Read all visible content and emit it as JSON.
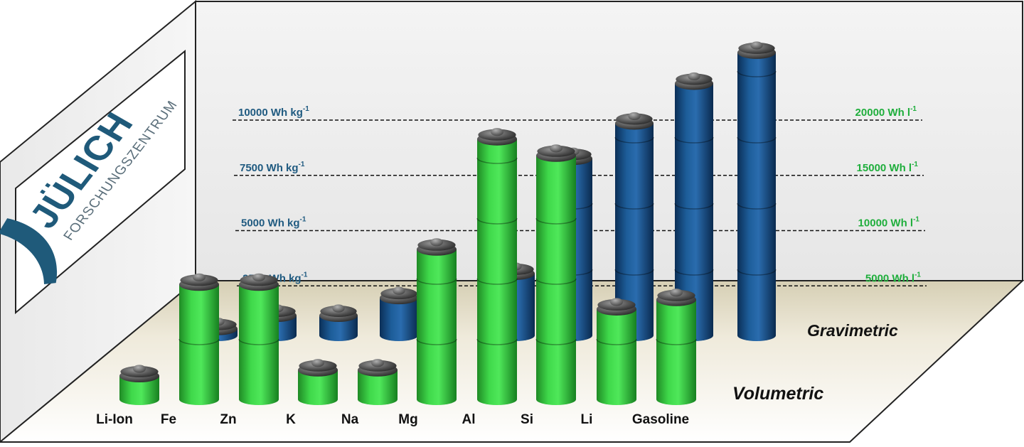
{
  "logo": {
    "brand": "JÜLICH",
    "subtitle": "FORSCHUNGSZENTRUM"
  },
  "colors": {
    "gravimetric": "#1f5a93",
    "volumetric": "#3fd24a",
    "left_axis_text": "#1f5a80",
    "right_axis_text": "#1fae3c",
    "floor": "#ece6d4",
    "wall": "#f0f0f0"
  },
  "chart_data": {
    "type": "bar",
    "title": "",
    "categories": [
      "Li-Ion",
      "Fe",
      "Zn",
      "K",
      "Na",
      "Mg",
      "Al",
      "Si",
      "Li",
      "Gasoline"
    ],
    "series": [
      {
        "name": "Gravimetric",
        "unit": "Wh kg-1",
        "values": [
          null,
          300,
          900,
          900,
          1700,
          2800,
          8000,
          9600,
          11400,
          12800
        ]
      },
      {
        "name": "Volumetric",
        "unit": "Wh l-1",
        "values": [
          2000,
          9800,
          9800,
          2500,
          2500,
          12800,
          22200,
          20800,
          7700,
          8500
        ]
      }
    ],
    "left_axis": {
      "ticks": [
        2500,
        5000,
        7500,
        10000
      ],
      "labels": [
        "2500 Wh kg",
        "5000 Wh kg",
        "7500 Wh kg",
        "10000 Wh kg"
      ],
      "superscript": "-1"
    },
    "right_axis": {
      "ticks": [
        5000,
        10000,
        15000,
        20000
      ],
      "labels": [
        "5000 Wh l",
        "10000 Wh l",
        "15000 Wh l",
        "20000 Wh l"
      ],
      "superscript": "-1"
    },
    "row_labels": {
      "back": "Gravimetric",
      "front": "Volumetric"
    },
    "grid": true
  }
}
